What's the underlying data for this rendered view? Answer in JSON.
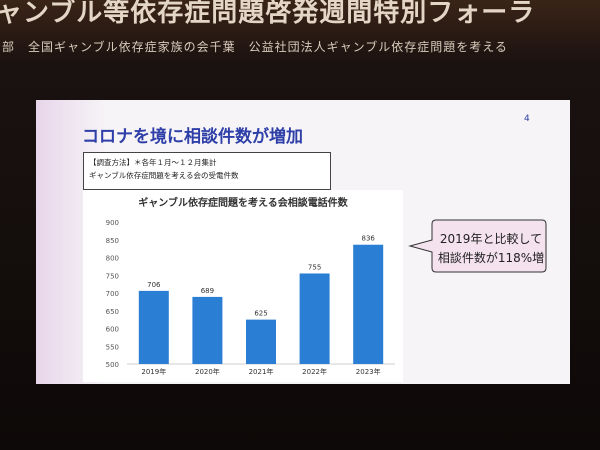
{
  "banner": {
    "title": "ャンブル等依存症問題啓発週間特別フォーラ",
    "subtitle": "部　全国ギャンブル依存症家族の会千葉　公益社団法人ギャンブル依存症問題を考える"
  },
  "slide": {
    "title": "コロナを境に相談件数が増加",
    "page_number": "4",
    "method_box": {
      "line1": "【調査方法】＊各年１月～１２月集計",
      "line2": "ギャンブル依存症問題を考える会の受電件数"
    },
    "callout": {
      "line1": "2019年と比較して",
      "line2": "相談件数が118%増"
    }
  },
  "colors": {
    "bar": "#2a7fd4",
    "title": "#2e3fa8",
    "callout_fill": "#f4e2ef"
  },
  "chart_data": {
    "type": "bar",
    "title": "ギャンブル依存症問題を考える会相談電話件数",
    "categories": [
      "2019年",
      "2020年",
      "2021年",
      "2022年",
      "2023年"
    ],
    "values": [
      706,
      689,
      625,
      755,
      836
    ],
    "ylim": [
      500,
      900
    ],
    "yticks": [
      500,
      550,
      600,
      650,
      700,
      750,
      800,
      850,
      900
    ],
    "xlabel": "",
    "ylabel": "",
    "grid": false,
    "data_labels": true
  }
}
